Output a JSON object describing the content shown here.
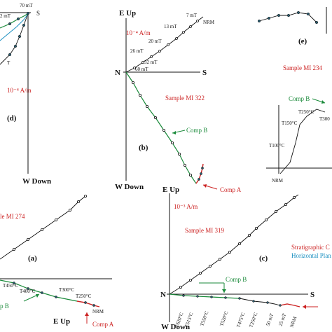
{
  "panel_d": {
    "label": "(d)",
    "axis_top_right": "S",
    "axis_bottom": "W Down",
    "scale": "10⁻⁴ A/m",
    "step_top": "70 mT",
    "step_second": "2 mT",
    "step_side": "T"
  },
  "panel_b": {
    "label": "(b)",
    "axis_top": "E Up",
    "axis_left": "N",
    "axis_right": "S",
    "axis_bottom": "W Down",
    "scale": "10⁻⁴ A/m",
    "sample": "Sample MI 322",
    "steps": [
      "7 mT",
      "13 mT",
      "20 mT",
      "26 mT",
      "32 mT",
      "60 mT",
      "NRM"
    ],
    "comp_b": "Comp B",
    "comp_a": "Comp A"
  },
  "panel_e": {
    "label": "(e)",
    "sample": "Sample MI 234",
    "comp_b": "Comp B",
    "steps": [
      "T250°C",
      "T150°C",
      "T300",
      "T100°C",
      "NRM"
    ]
  },
  "panel_a": {
    "label": "(a)",
    "sample": "le MI 274",
    "axis_bottom": "E  Up",
    "comp_b": "p B",
    "comp_a": "Comp A",
    "steps": [
      "T450°C",
      "T400°C",
      "T300°C",
      "T250°C",
      "NRM"
    ]
  },
  "panel_c": {
    "label": "(c)",
    "axis_top": "E Up",
    "axis_left": "N",
    "axis_right": "S",
    "axis_bottom": "W Down",
    "scale": "10⁻³ A/m",
    "sample": "Sample MI 319",
    "comp_b": "Comp B",
    "legend_strat": "Stratigraphic C",
    "legend_horiz": "Horizontal Plan",
    "axis_steps": [
      "T620°C",
      "T515°C",
      "T550°C",
      "T520°C",
      "T475°C",
      "T250°C",
      "50 mT",
      "25 mT",
      "NRM"
    ],
    "colors": {
      "stratigraphic": "#cc2222",
      "horizontal": "#1a8fc0",
      "comp_b": "#1a8a3a"
    }
  }
}
